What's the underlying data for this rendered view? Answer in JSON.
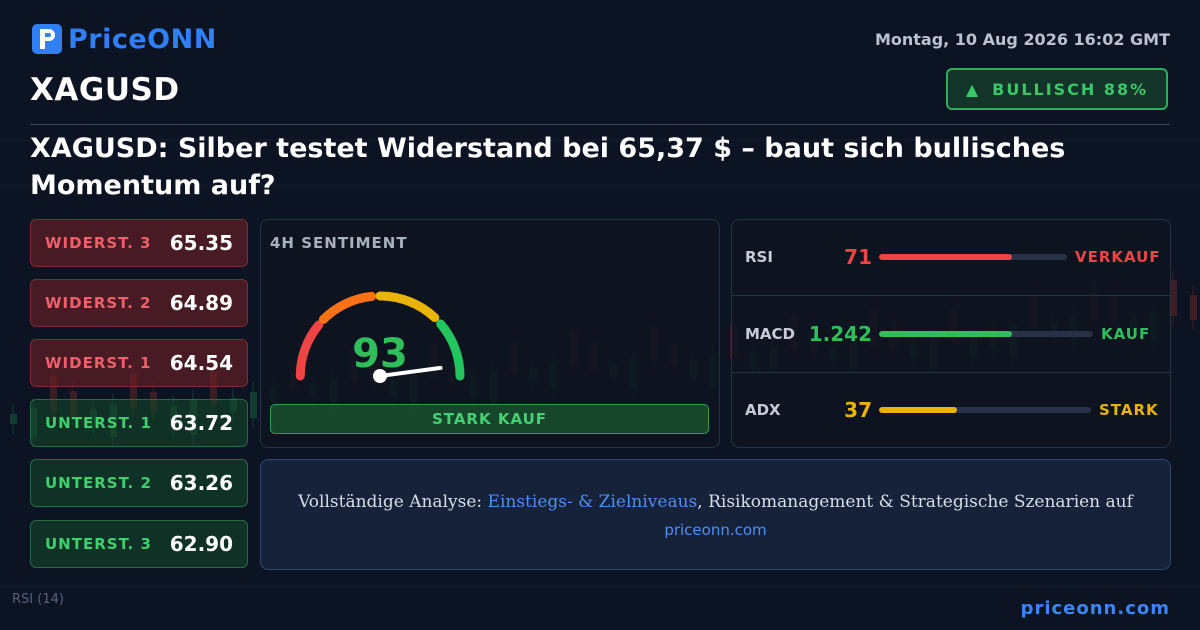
{
  "brand": {
    "name": "PriceONN"
  },
  "header": {
    "datetime": "Montag, 10 Aug 2026 16:02 GMT",
    "symbol": "XAGUSD",
    "sentiment_badge": {
      "arrow": "▲",
      "label": "BULLISCH 88%"
    }
  },
  "headline": "XAGUSD: Silber testet Widerstand bei 65,37 $ – baut sich bullisches Momentum auf?",
  "levels": [
    {
      "label": "WIDERST. 3",
      "value": "65.35",
      "kind": "resistance"
    },
    {
      "label": "WIDERST. 2",
      "value": "64.89",
      "kind": "resistance"
    },
    {
      "label": "WIDERST. 1",
      "value": "64.54",
      "kind": "resistance"
    },
    {
      "label": "UNTERST. 1",
      "value": "63.72",
      "kind": "support"
    },
    {
      "label": "UNTERST. 2",
      "value": "63.26",
      "kind": "support"
    },
    {
      "label": "UNTERST. 3",
      "value": "62.90",
      "kind": "support"
    }
  ],
  "gauge": {
    "title": "4H SENTIMENT",
    "value": "93",
    "value_number": 93,
    "signal": "STARK KAUF"
  },
  "indicators": [
    {
      "name": "RSI",
      "value": "71",
      "fill": 0.71,
      "signal": "VERKAUF",
      "color": "#ef4444"
    },
    {
      "name": "MACD",
      "value": "1.242",
      "fill": 0.62,
      "signal": "KAUF",
      "color": "#2fbe5a"
    },
    {
      "name": "ADX",
      "value": "37",
      "fill": 0.37,
      "signal": "STARK",
      "color": "#eab308"
    }
  ],
  "cta": {
    "prefix": "Vollständige Analyse: ",
    "link": "Einstiegs- & Zielniveaus",
    "suffix": ", Risikomanagement & Strategische Szenarien auf",
    "url": "priceonn.com"
  },
  "footer": {
    "url": "priceonn.com",
    "rsi_label": "RSI",
    "rsi_period": "(14)"
  },
  "colors": {
    "background": "#0b1220",
    "brand": "#2f7ff5",
    "bullish": "#2fbe5a",
    "bearish": "#ef4444",
    "neutral": "#eab308"
  }
}
